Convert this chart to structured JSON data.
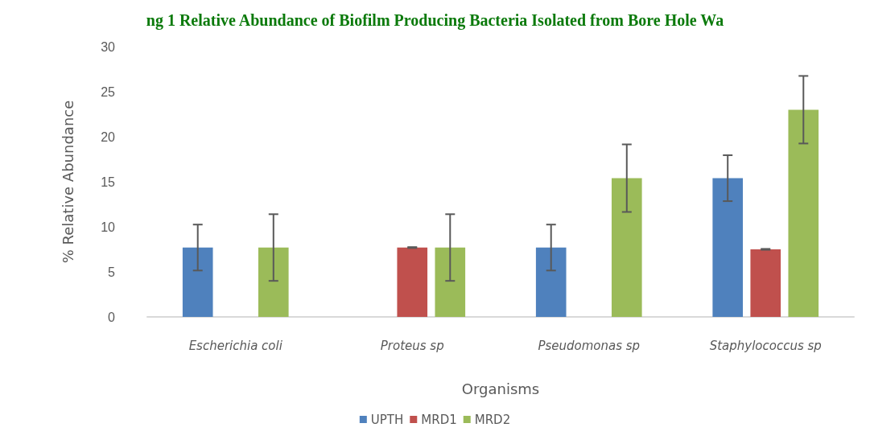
{
  "chart_data": {
    "type": "bar",
    "title": "ng 1 Relative Abundance of Biofilm Producing Bacteria Isolated from Bore Hole Wa",
    "xlabel": "Organisms",
    "ylabel": "% Relative Abundance",
    "categories": [
      "Escherichia coli",
      "Proteus sp",
      "Pseudomonas sp",
      "Staphylococcus sp"
    ],
    "series": [
      {
        "name": "UPTH",
        "color": "#4f81bd",
        "values": [
          7.7,
          null,
          7.7,
          15.4
        ],
        "errors": [
          2.55,
          null,
          2.55,
          2.55
        ]
      },
      {
        "name": "MRD1",
        "color": "#c0504d",
        "values": [
          null,
          7.7,
          null,
          7.5
        ],
        "errors": [
          null,
          0.05,
          null,
          0.05
        ]
      },
      {
        "name": "MRD2",
        "color": "#9bbb59",
        "values": [
          7.7,
          7.7,
          15.4,
          23.0
        ],
        "errors": [
          3.7,
          3.7,
          3.75,
          3.75
        ]
      }
    ],
    "ylim": [
      0,
      30
    ],
    "yticks": [
      0,
      5,
      10,
      15,
      20,
      25,
      30
    ],
    "grid": false,
    "legend": "bottom"
  }
}
